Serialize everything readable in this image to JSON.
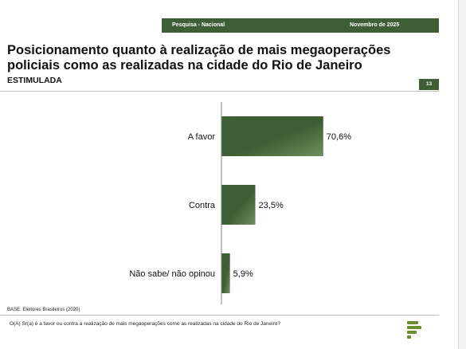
{
  "header": {
    "survey": "Pesquisa - Nacional",
    "date": "Novembro de 2025",
    "title": "Posicionamento quanto à realização de mais megaoperações policiais como as realizadas na cidade do Rio de Janeiro",
    "subtitle": "ESTIMULADA",
    "page_number": "13"
  },
  "footer": {
    "base": "BASE: Eleitores Brasileiros (2020)",
    "question": "O(A) Sr(a) é a favor ou contra a realização de mais megaoperações como as realizadas na cidade do Rio de Janeiro?"
  },
  "colors": {
    "bar_dark": "#3e5e35",
    "bar_light": "#6f8f5f",
    "accent": "#3e5e35"
  },
  "chart_data": {
    "type": "bar",
    "orientation": "horizontal",
    "categories": [
      "A favor",
      "Contra",
      "Não sabe/ não opinou"
    ],
    "values": [
      70.6,
      23.5,
      5.9
    ],
    "value_labels": [
      "70,6%",
      "23,5%",
      "5,9%"
    ],
    "xlim": [
      0,
      100
    ],
    "grid": false,
    "legend": "none"
  }
}
